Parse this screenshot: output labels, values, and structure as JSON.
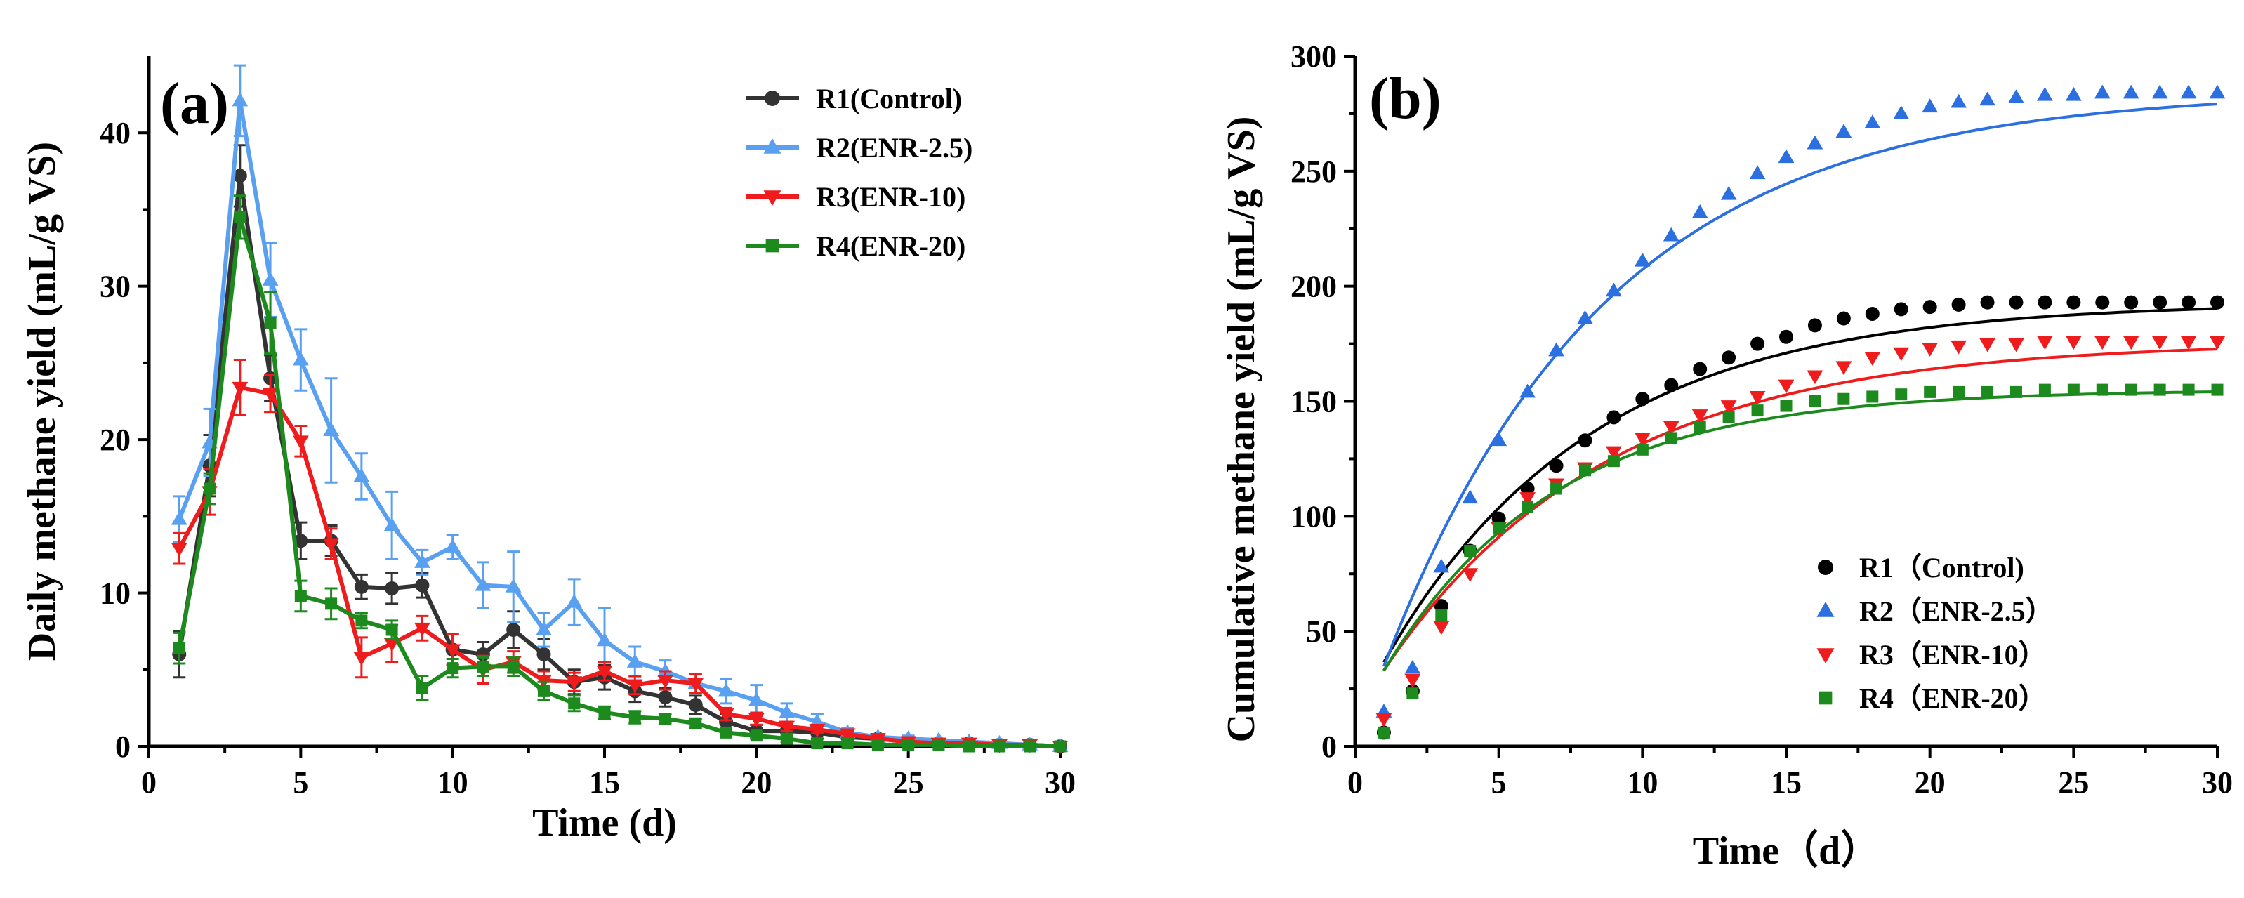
{
  "chart_data": [
    {
      "panel_label": "(a)",
      "type": "line",
      "xlabel": "Time (d)",
      "ylabel": "Daily methane yield (mL/g VS)",
      "xlim": [
        0,
        30
      ],
      "ylim": [
        0,
        45
      ],
      "xticks": [
        "0",
        "5",
        "10",
        "15",
        "20",
        "25",
        "30"
      ],
      "yticks": [
        "0",
        "10",
        "20",
        "30",
        "40"
      ],
      "legend_position": "top-right",
      "x": [
        1,
        2,
        3,
        4,
        5,
        6,
        7,
        8,
        9,
        10,
        11,
        12,
        13,
        14,
        15,
        16,
        17,
        18,
        19,
        20,
        21,
        22,
        23,
        24,
        25,
        26,
        27,
        28,
        29,
        30
      ],
      "series": [
        {
          "name": "R1(Control)",
          "color": "#333333",
          "marker": "circle",
          "values": [
            6.0,
            18.3,
            37.2,
            24.0,
            13.4,
            13.4,
            10.4,
            10.3,
            10.5,
            6.3,
            6.0,
            7.6,
            6.0,
            4.2,
            4.5,
            3.6,
            3.2,
            2.7,
            1.6,
            1.0,
            1.0,
            0.9,
            0.6,
            0.5,
            0.3,
            0.2,
            0.2,
            0.1,
            0.1,
            0.0
          ],
          "errors": [
            1.5,
            2.0,
            2.0,
            1.5,
            1.2,
            1.0,
            0.8,
            1.0,
            0.8,
            1.0,
            0.8,
            1.2,
            1.0,
            0.8,
            0.8,
            0.7,
            0.6,
            0.6,
            0.5,
            0.4,
            0.4,
            0.4,
            0.3,
            0.3,
            0.2,
            0.1,
            0.1,
            0.1,
            0.1,
            0.0
          ]
        },
        {
          "name": "R2(ENR-2.5)",
          "color": "#5aa0f0",
          "marker": "triangle-up",
          "values": [
            14.8,
            19.8,
            42.1,
            30.4,
            25.2,
            20.6,
            17.6,
            14.4,
            12.0,
            13.0,
            10.5,
            10.4,
            7.6,
            9.4,
            6.9,
            5.5,
            4.9,
            4.1,
            3.6,
            3.0,
            2.2,
            1.6,
            0.9,
            0.6,
            0.5,
            0.4,
            0.3,
            0.2,
            0.1,
            0.0
          ],
          "errors": [
            1.5,
            2.2,
            2.3,
            2.4,
            2.0,
            3.4,
            1.5,
            2.2,
            0.8,
            0.8,
            1.5,
            2.3,
            1.1,
            1.5,
            2.1,
            1.0,
            0.7,
            0.6,
            0.8,
            1.0,
            0.6,
            0.5,
            0.3,
            0.2,
            0.2,
            0.1,
            0.1,
            0.1,
            0.1,
            0.0
          ]
        },
        {
          "name": "R3(ENR-10)",
          "color": "#ee1c1c",
          "marker": "triangle-down",
          "values": [
            12.9,
            16.6,
            23.4,
            23.0,
            19.9,
            13.2,
            5.8,
            6.7,
            7.7,
            6.3,
            5.0,
            5.5,
            4.3,
            4.2,
            4.9,
            4.0,
            4.3,
            4.1,
            2.1,
            1.8,
            1.3,
            1.1,
            0.8,
            0.5,
            0.3,
            0.2,
            0.2,
            0.1,
            0.1,
            0.0
          ],
          "errors": [
            1.0,
            1.5,
            1.8,
            1.2,
            1.0,
            1.0,
            1.3,
            1.2,
            0.8,
            1.0,
            0.9,
            0.7,
            0.6,
            0.6,
            0.6,
            0.6,
            0.6,
            0.6,
            0.4,
            0.4,
            0.3,
            0.2,
            0.2,
            0.1,
            0.1,
            0.1,
            0.1,
            0.1,
            0.1,
            0.0
          ]
        },
        {
          "name": "R4(ENR-20)",
          "color": "#1c8a1c",
          "marker": "square",
          "values": [
            6.4,
            16.8,
            34.5,
            27.6,
            9.8,
            9.3,
            8.2,
            7.6,
            3.8,
            5.1,
            5.2,
            5.2,
            3.6,
            2.8,
            2.2,
            1.9,
            1.8,
            1.5,
            0.9,
            0.7,
            0.5,
            0.2,
            0.2,
            0.1,
            0.1,
            0.1,
            0.0,
            0.0,
            0.0,
            0.0
          ],
          "errors": [
            1.0,
            1.0,
            1.4,
            2.0,
            1.0,
            1.0,
            0.5,
            0.6,
            0.8,
            0.6,
            0.6,
            0.6,
            0.6,
            0.5,
            0.4,
            0.4,
            0.3,
            0.3,
            0.2,
            0.2,
            0.2,
            0.1,
            0.1,
            0.1,
            0.1,
            0.1,
            0.0,
            0.0,
            0.0,
            0.0
          ]
        }
      ]
    },
    {
      "panel_label": "(b)",
      "type": "scatter",
      "xlabel": "Time（d）",
      "ylabel": "Cumulative methane yield (mL/g VS)",
      "xlim": [
        0,
        30
      ],
      "ylim": [
        0,
        300
      ],
      "xticks": [
        "0",
        "5",
        "10",
        "15",
        "20",
        "25",
        "30"
      ],
      "yticks": [
        "0",
        "50",
        "100",
        "150",
        "200",
        "250",
        "300"
      ],
      "legend_position": "bottom-right",
      "x": [
        1,
        2,
        3,
        4,
        5,
        6,
        7,
        8,
        9,
        10,
        11,
        12,
        13,
        14,
        15,
        16,
        17,
        18,
        19,
        20,
        21,
        22,
        23,
        24,
        25,
        26,
        27,
        28,
        29,
        30
      ],
      "fit": "first-order kinetic fit curves",
      "series": [
        {
          "name": "R1（Control)",
          "color": "#000000",
          "fit_color": "#000000",
          "marker": "circle",
          "values": [
            6,
            24,
            61,
            85,
            99,
            112,
            122,
            133,
            143,
            151,
            157,
            164,
            169,
            175,
            178,
            183,
            186,
            188,
            190,
            191,
            192,
            193,
            193,
            193,
            193,
            193,
            193,
            193,
            193,
            193
          ],
          "fit_params": {
            "ymax": 193,
            "k": 0.14,
            "t0": -0.5
          }
        },
        {
          "name": "R2（ENR-2.5）",
          "color": "#2b6fe0",
          "fit_color": "#2b6fe0",
          "marker": "triangle-up",
          "values": [
            15,
            34,
            78,
            108,
            133,
            154,
            172,
            186,
            198,
            211,
            222,
            232,
            240,
            249,
            256,
            262,
            267,
            271,
            275,
            278,
            280,
            281,
            282,
            283,
            283,
            284,
            284,
            284,
            284,
            284
          ],
          "fit_params": {
            "ymax": 285,
            "k": 0.13,
            "t0": 0.0
          }
        },
        {
          "name": "R3（ENR-10）",
          "color": "#ee1c1c",
          "fit_color": "#ee1c1c",
          "marker": "triangle-down",
          "values": [
            12,
            29,
            52,
            75,
            95,
            108,
            114,
            121,
            128,
            134,
            139,
            144,
            148,
            152,
            157,
            161,
            165,
            169,
            171,
            173,
            174,
            175,
            175,
            176,
            176,
            176,
            176,
            176,
            176,
            176
          ],
          "fit_params": {
            "ymax": 176,
            "k": 0.13,
            "t0": -0.6
          }
        },
        {
          "name": "R4（ENR-20）",
          "color": "#1c8a1c",
          "fit_color": "#1c8a1c",
          "marker": "square",
          "values": [
            6,
            23,
            57,
            85,
            95,
            104,
            112,
            120,
            124,
            129,
            134,
            139,
            143,
            146,
            148,
            150,
            151,
            152,
            153,
            154,
            154,
            154,
            154,
            155,
            155,
            155,
            155,
            155,
            155,
            155
          ],
          "fit_params": {
            "ymax": 155,
            "k": 0.17,
            "t0": -0.4
          }
        }
      ]
    }
  ]
}
